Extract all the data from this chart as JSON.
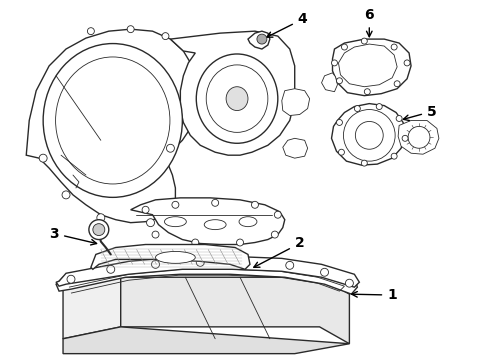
{
  "background_color": "#ffffff",
  "line_color": "#2a2a2a",
  "fig_width": 4.9,
  "fig_height": 3.6,
  "dpi": 100,
  "label_fontsize": 10,
  "label_fontweight": "bold"
}
